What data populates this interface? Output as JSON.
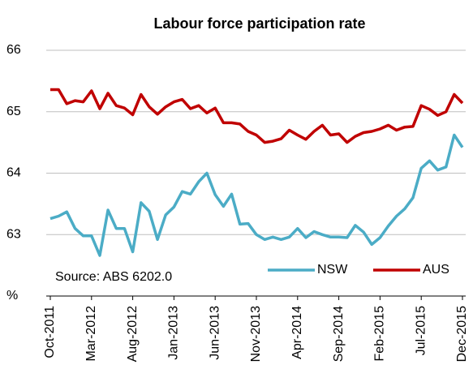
{
  "chart_data": {
    "type": "line",
    "title": "Labour force participation rate",
    "annotation": "Source: ABS 6202.0",
    "categories": [
      "Oct-2011",
      null,
      null,
      null,
      null,
      "Mar-2012",
      null,
      null,
      null,
      null,
      "Aug-2012",
      null,
      null,
      null,
      null,
      "Jan-2013",
      null,
      null,
      null,
      null,
      "Jun-2013",
      null,
      null,
      null,
      null,
      "Nov-2013",
      null,
      null,
      null,
      null,
      "Apr-2014",
      null,
      null,
      null,
      null,
      "Sep-2014",
      null,
      null,
      null,
      null,
      "Feb-2015",
      null,
      null,
      null,
      null,
      "Jul-2015",
      null,
      null,
      null,
      null,
      "Dec-2015"
    ],
    "series": [
      {
        "name": "NSW",
        "color": "#4bacc6",
        "values": [
          63.26,
          63.3,
          63.37,
          63.1,
          62.98,
          62.98,
          62.66,
          63.4,
          63.1,
          63.1,
          62.72,
          63.52,
          63.38,
          62.92,
          63.32,
          63.45,
          63.7,
          63.66,
          63.86,
          64.0,
          63.65,
          63.46,
          63.66,
          63.17,
          63.18,
          63.0,
          62.92,
          62.96,
          62.92,
          62.96,
          63.1,
          62.95,
          63.05,
          63.0,
          62.96,
          62.96,
          62.95,
          63.15,
          63.04,
          62.84,
          62.95,
          63.14,
          63.3,
          63.42,
          63.6,
          64.08,
          64.2,
          64.05,
          64.1,
          64.62,
          64.42
        ]
      },
      {
        "name": "AUS",
        "color": "#c00000",
        "values": [
          65.36,
          65.36,
          65.13,
          65.18,
          65.16,
          65.34,
          65.05,
          65.3,
          65.1,
          65.06,
          64.95,
          65.28,
          65.08,
          64.96,
          65.08,
          65.16,
          65.2,
          65.05,
          65.1,
          64.98,
          65.06,
          64.82,
          64.82,
          64.8,
          64.68,
          64.62,
          64.5,
          64.52,
          64.56,
          64.7,
          64.62,
          64.55,
          64.68,
          64.78,
          64.62,
          64.64,
          64.5,
          64.6,
          64.66,
          64.68,
          64.72,
          64.78,
          64.7,
          64.75,
          64.76,
          65.1,
          65.04,
          64.94,
          65.0,
          65.28,
          65.14
        ]
      }
    ],
    "ylim": [
      62,
      66
    ],
    "yticks": [
      {
        "value": 62,
        "label": "%"
      },
      63,
      64,
      65,
      66
    ],
    "grid": true,
    "legend": "bottom-right"
  }
}
